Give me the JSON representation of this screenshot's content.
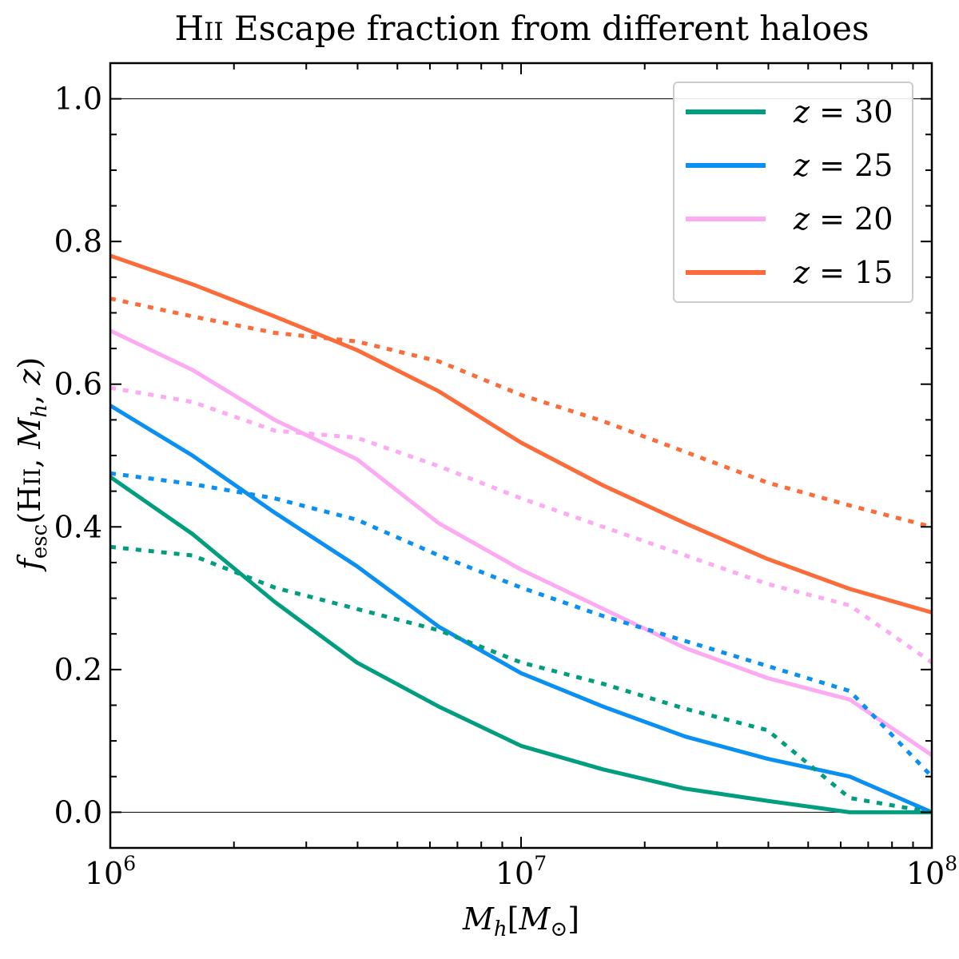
{
  "chart_data": {
    "type": "line",
    "title": "HII Escape fraction from different haloes",
    "xlabel": "M_h[M_⊙]",
    "ylabel": "f_esc(HII, M_h, z)",
    "xscale": "log",
    "xlim": [
      1000000,
      100000000
    ],
    "ylim": [
      -0.05,
      1.05
    ],
    "x_ticks": [
      {
        "base": "10",
        "exp": "6"
      },
      {
        "base": "10",
        "exp": "7"
      },
      {
        "base": "10",
        "exp": "8"
      }
    ],
    "y_ticks": [
      "0.0",
      "0.2",
      "0.4",
      "0.6",
      "0.8",
      "1.0"
    ],
    "y_tick_values": [
      0.0,
      0.2,
      0.4,
      0.6,
      0.8,
      1.0
    ],
    "reference_lines": [
      0.0,
      1.0
    ],
    "legend_position": "top-right",
    "x": [
      1000000,
      1584893,
      2511886,
      3981072,
      6309573,
      10000000,
      15848932,
      25118864,
      39810717,
      63095734,
      100000000
    ],
    "series": [
      {
        "name": "z = 30",
        "z": "30",
        "style": "solid",
        "color": "#009e7f",
        "values": [
          0.47,
          0.39,
          0.295,
          0.21,
          0.148,
          0.093,
          0.06,
          0.033,
          0.016,
          0.0,
          0.0
        ]
      },
      {
        "name": "z = 25",
        "z": "25",
        "style": "solid",
        "color": "#0a8ff2",
        "values": [
          0.57,
          0.5,
          0.42,
          0.345,
          0.26,
          0.195,
          0.148,
          0.106,
          0.075,
          0.05,
          0.0
        ]
      },
      {
        "name": "z = 20",
        "z": "20",
        "style": "solid",
        "color": "#fcaaf2",
        "values": [
          0.675,
          0.62,
          0.55,
          0.495,
          0.405,
          0.34,
          0.285,
          0.23,
          0.188,
          0.158,
          0.08
        ]
      },
      {
        "name": "z = 15",
        "z": "15",
        "style": "solid",
        "color": "#fc6b3a",
        "values": [
          0.78,
          0.74,
          0.695,
          0.648,
          0.59,
          0.518,
          0.458,
          0.405,
          0.355,
          0.313,
          0.28
        ]
      },
      {
        "style": "dotted",
        "color": "#009e7f",
        "values": [
          0.372,
          0.36,
          0.315,
          0.285,
          0.255,
          0.21,
          0.18,
          0.145,
          0.115,
          0.02,
          0.0
        ]
      },
      {
        "style": "dotted",
        "color": "#0a8ff2",
        "values": [
          0.475,
          0.46,
          0.44,
          0.41,
          0.36,
          0.315,
          0.275,
          0.24,
          0.205,
          0.17,
          0.05
        ]
      },
      {
        "style": "dotted",
        "color": "#fcaaf2",
        "values": [
          0.595,
          0.575,
          0.535,
          0.525,
          0.485,
          0.44,
          0.4,
          0.36,
          0.32,
          0.29,
          0.21
        ]
      },
      {
        "style": "dotted",
        "color": "#fc6b3a",
        "values": [
          0.72,
          0.695,
          0.672,
          0.66,
          0.632,
          0.585,
          0.548,
          0.505,
          0.462,
          0.43,
          0.4
        ]
      }
    ]
  }
}
